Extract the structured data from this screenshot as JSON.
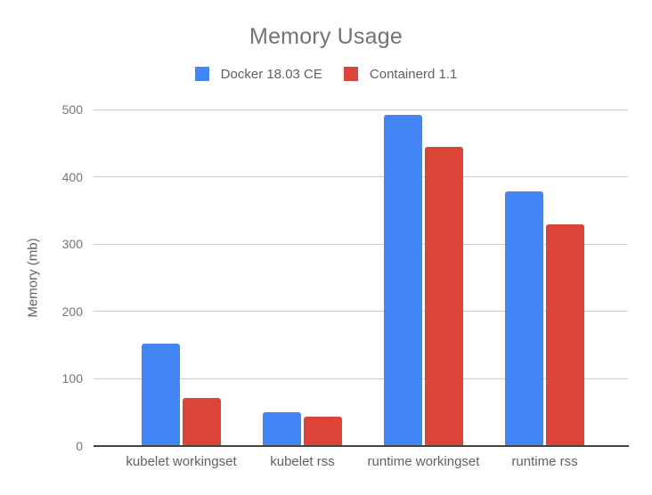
{
  "chart_data": {
    "type": "bar",
    "title": "Memory Usage",
    "xlabel": "",
    "ylabel": "Memory (mb)",
    "categories": [
      "kubelet workingset",
      "kubelet rss",
      "runtime workingset",
      "runtime rss"
    ],
    "series": [
      {
        "name": "Docker 18.03 CE",
        "color": "#4285f4",
        "values": [
          152,
          50,
          492,
          378
        ]
      },
      {
        "name": "Containerd 1.1",
        "color": "#db4437",
        "values": [
          72,
          44,
          444,
          329
        ]
      }
    ],
    "ylim": [
      0,
      500
    ],
    "yticks": [
      0,
      100,
      200,
      300,
      400,
      500
    ],
    "grid": true,
    "legend_position": "top",
    "colors": {
      "background": "#ffffff",
      "title_text": "#737373",
      "legend_text": "#616161",
      "tick_text": "#757575",
      "axis_label_text": "#616161",
      "gridline": "#cccccc",
      "axis_line": "#424242"
    }
  }
}
